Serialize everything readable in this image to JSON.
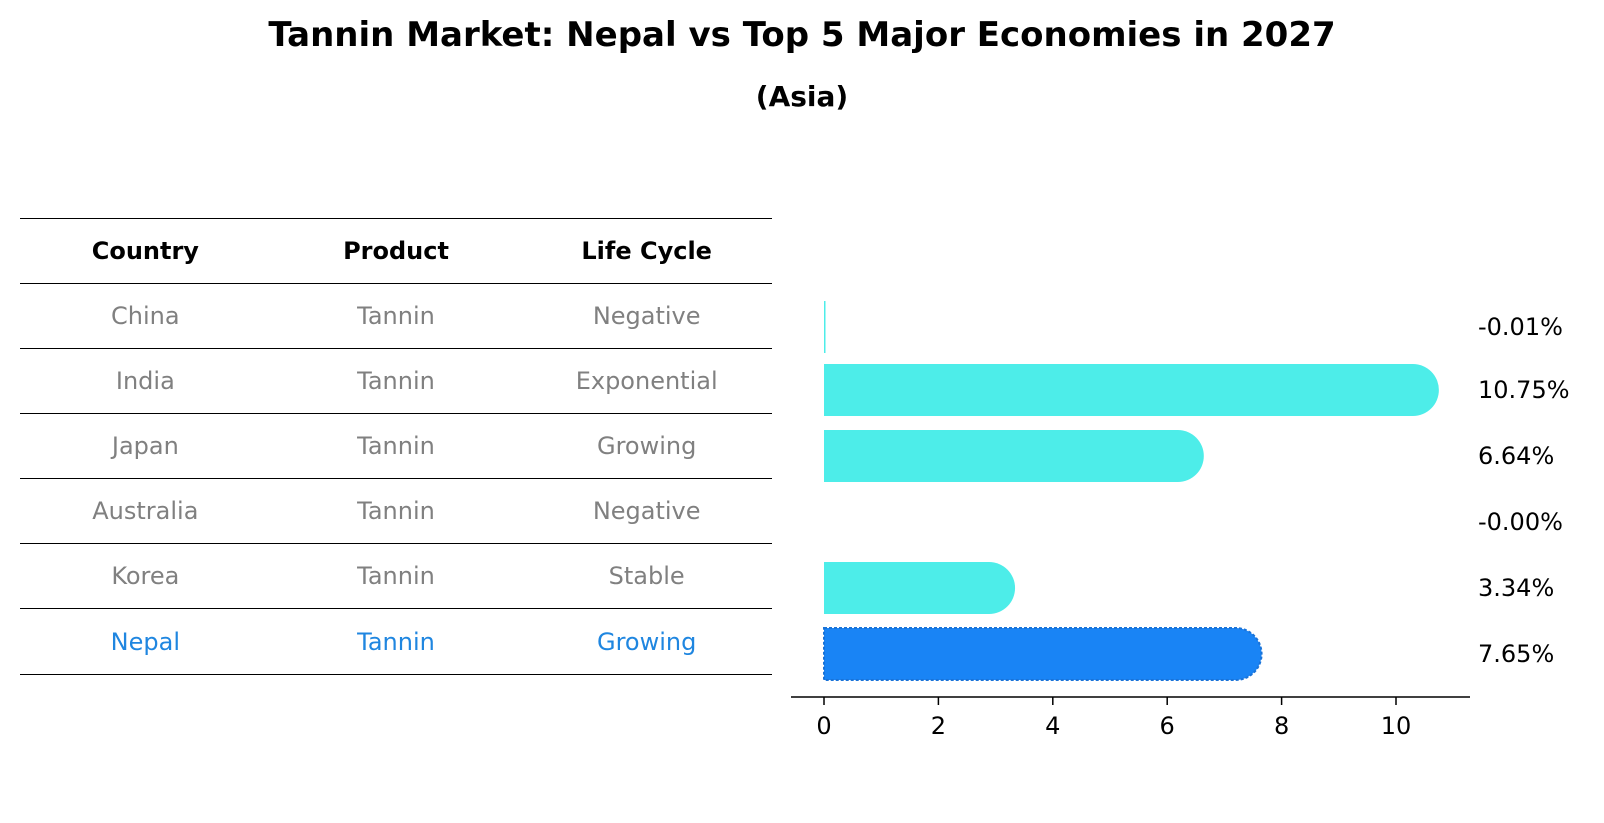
{
  "title": "Tannin Market: Nepal vs Top 5 Major Economies in 2027",
  "subtitle": "(Asia)",
  "table": {
    "headers": [
      "Country",
      "Product",
      "Life Cycle"
    ],
    "rows": [
      [
        "China",
        "Tannin",
        "Negative"
      ],
      [
        "India",
        "Tannin",
        "Exponential"
      ],
      [
        "Japan",
        "Tannin",
        "Growing"
      ],
      [
        "Australia",
        "Tannin",
        "Negative"
      ],
      [
        "Korea",
        "Tannin",
        "Stable"
      ],
      [
        "Nepal",
        "Tannin",
        "Growing"
      ]
    ],
    "highlight_row": 5
  },
  "colors": {
    "bar": "#4dede9",
    "highlight_bar": "#1984f5",
    "muted_text": "#808080",
    "highlight_text": "#1f86e0"
  },
  "chart_data": {
    "type": "bar",
    "orientation": "horizontal",
    "categories": [
      "China",
      "India",
      "Japan",
      "Australia",
      "Korea",
      "Nepal"
    ],
    "values": [
      -0.01,
      10.75,
      6.64,
      -0.0,
      3.34,
      7.65
    ],
    "value_labels": [
      "-0.01%",
      "10.75%",
      "6.64%",
      "-0.00%",
      "3.34%",
      "7.65%"
    ],
    "xticks": [
      0,
      2,
      4,
      6,
      8,
      10
    ],
    "xlim": [
      -0.55,
      11.3
    ],
    "highlight_index": 5,
    "grid": false
  }
}
